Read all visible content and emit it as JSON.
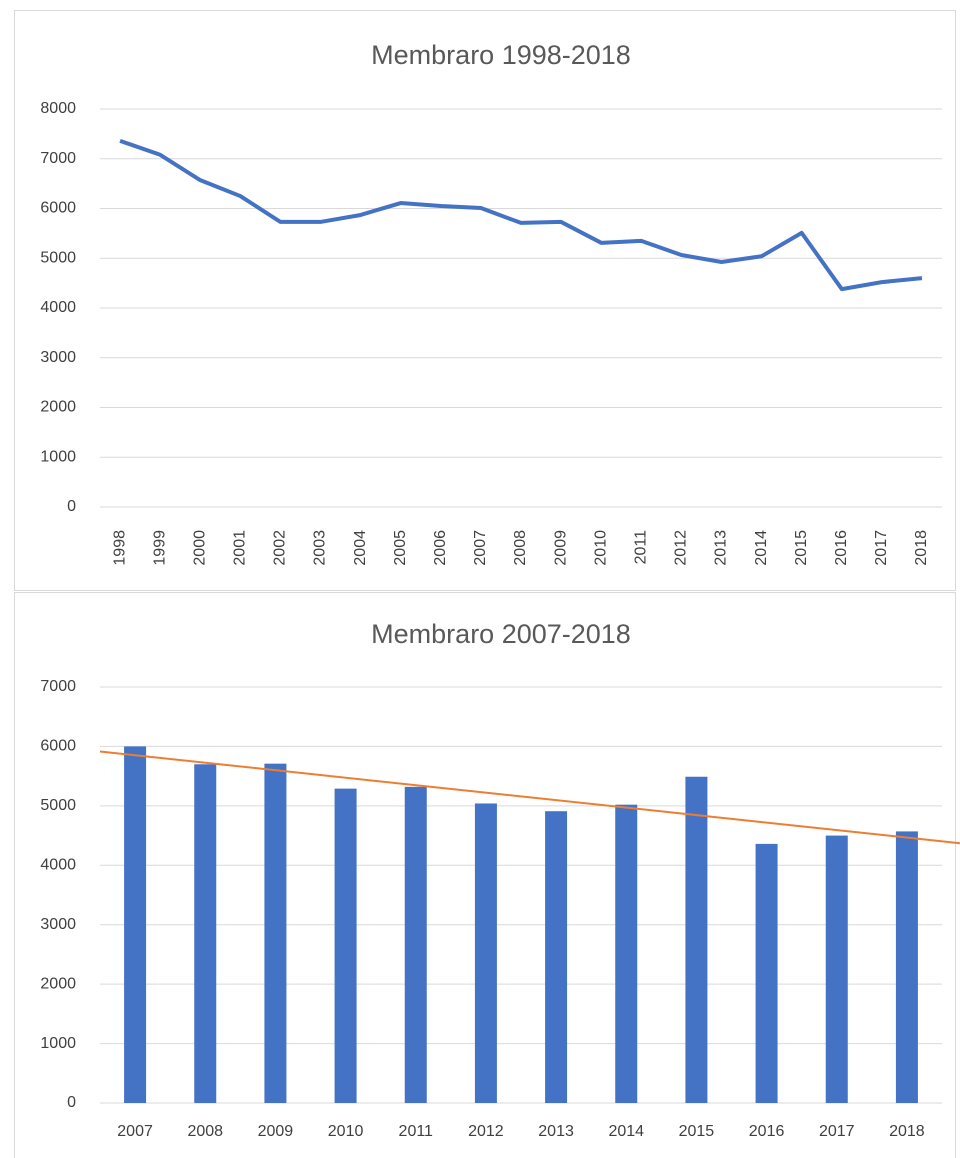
{
  "chart_data": [
    {
      "type": "line",
      "title": "Membraro 1998-2018",
      "categories": [
        "1998",
        "1999",
        "2000",
        "2001",
        "2002",
        "2003",
        "2004",
        "2005",
        "2006",
        "2007",
        "2008",
        "2009",
        "2010",
        "2011",
        "2012",
        "2013",
        "2014",
        "2015",
        "2016",
        "2017",
        "2018"
      ],
      "values": [
        7360,
        7080,
        6570,
        6250,
        5730,
        5730,
        5870,
        6110,
        6050,
        6010,
        5710,
        5730,
        5310,
        5350,
        5065,
        4925,
        5040,
        5510,
        4380,
        4520,
        4600
      ],
      "color": "#4472c4",
      "ylim": [
        0,
        8000
      ],
      "yticks": [
        0,
        1000,
        2000,
        3000,
        4000,
        5000,
        6000,
        7000,
        8000
      ],
      "grid": true
    },
    {
      "type": "bar",
      "title": "Membraro 2007-2018",
      "categories": [
        "2007",
        "2008",
        "2009",
        "2010",
        "2011",
        "2012",
        "2013",
        "2014",
        "2015",
        "2016",
        "2017",
        "2018"
      ],
      "values": [
        6000,
        5700,
        5710,
        5290,
        5320,
        5040,
        4910,
        5020,
        5490,
        4360,
        4500,
        4570
      ],
      "color": "#4472c4",
      "trendline_color": "#ed7d31",
      "ylim": [
        0,
        7000
      ],
      "yticks": [
        0,
        1000,
        2000,
        3000,
        4000,
        5000,
        6000,
        7000
      ],
      "grid": true
    }
  ]
}
